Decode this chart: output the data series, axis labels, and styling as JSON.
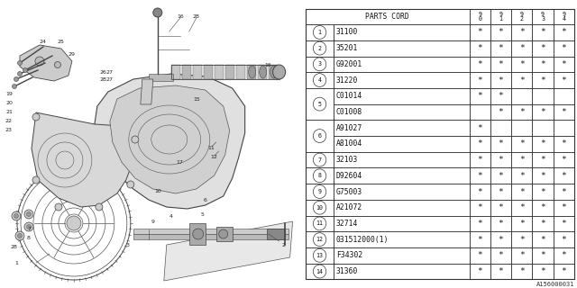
{
  "diagram_code": "A156000031",
  "bg_color": "#ffffff",
  "col_labels": [
    "9\n0",
    "9\n1",
    "9\n2",
    "9\n3",
    "9\n4"
  ],
  "rows": [
    {
      "num": "1",
      "part": "31100",
      "cols": [
        "*",
        "*",
        "*",
        "*",
        "*"
      ],
      "span": 1
    },
    {
      "num": "2",
      "part": "35201",
      "cols": [
        "*",
        "*",
        "*",
        "*",
        "*"
      ],
      "span": 1
    },
    {
      "num": "3",
      "part": "G92001",
      "cols": [
        "*",
        "*",
        "*",
        "*",
        "*"
      ],
      "span": 1
    },
    {
      "num": "4",
      "part": "31220",
      "cols": [
        "*",
        "*",
        "*",
        "*",
        "*"
      ],
      "span": 1
    },
    {
      "num": "5",
      "part": "C01014",
      "cols": [
        "*",
        "*",
        "",
        "",
        ""
      ],
      "span": 2,
      "sub": "C01008",
      "subcols": [
        "",
        "*",
        "*",
        "*",
        "*"
      ]
    },
    {
      "num": "6",
      "part": "A91027",
      "cols": [
        "*",
        "",
        "",
        "",
        ""
      ],
      "span": 2,
      "sub": "A81004",
      "subcols": [
        "*",
        "*",
        "*",
        "*",
        "*"
      ]
    },
    {
      "num": "7",
      "part": "32103",
      "cols": [
        "*",
        "*",
        "*",
        "*",
        "*"
      ],
      "span": 1
    },
    {
      "num": "8",
      "part": "D92604",
      "cols": [
        "*",
        "*",
        "*",
        "*",
        "*"
      ],
      "span": 1
    },
    {
      "num": "9",
      "part": "G75003",
      "cols": [
        "*",
        "*",
        "*",
        "*",
        "*"
      ],
      "span": 1
    },
    {
      "num": "10",
      "part": "A21072",
      "cols": [
        "*",
        "*",
        "*",
        "*",
        "*"
      ],
      "span": 1
    },
    {
      "num": "11",
      "part": "32714",
      "cols": [
        "*",
        "*",
        "*",
        "*",
        "*"
      ],
      "span": 1
    },
    {
      "num": "12",
      "part": "031512000(1)",
      "cols": [
        "*",
        "*",
        "*",
        "*",
        "*"
      ],
      "span": 1
    },
    {
      "num": "13",
      "part": "F34302",
      "cols": [
        "*",
        "*",
        "*",
        "*",
        "*"
      ],
      "span": 1
    },
    {
      "num": "14",
      "part": "31360",
      "cols": [
        "*",
        "*",
        "*",
        "*",
        "*"
      ],
      "span": 1
    }
  ]
}
